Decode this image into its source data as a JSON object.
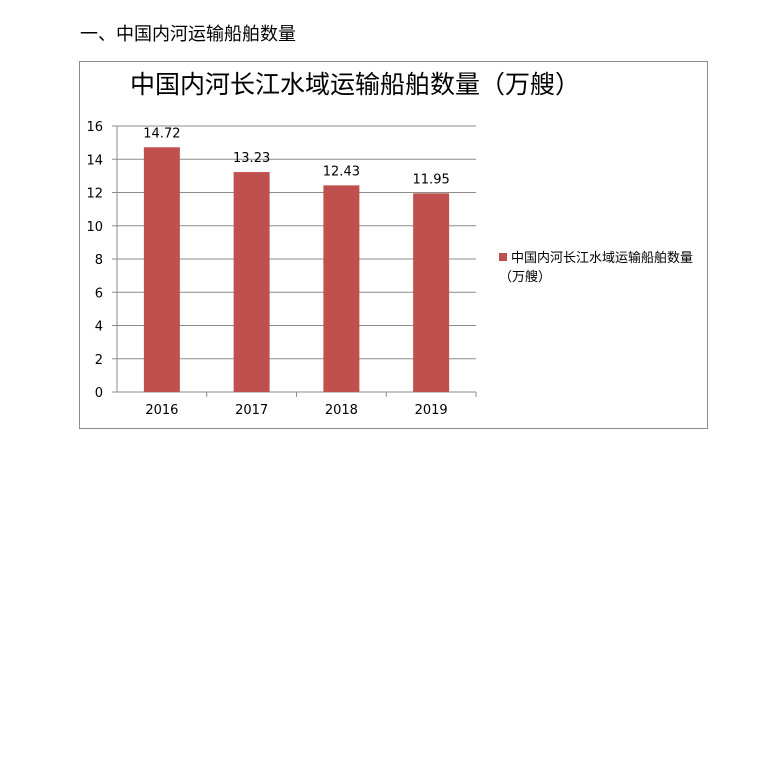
{
  "page": {
    "heading": "一、中国内河运输船舶数量"
  },
  "chart_data": {
    "type": "bar",
    "title": "中国内河长江水域运输船舶数量（万艘）",
    "categories": [
      "2016",
      "2017",
      "2018",
      "2019"
    ],
    "series": [
      {
        "name": "中国内河长江水域运输船舶数量（万艘）",
        "values": [
          14.72,
          13.23,
          12.43,
          11.95
        ],
        "color": "#c0504d"
      }
    ],
    "data_labels": [
      "14.72",
      "13.23",
      "12.43",
      "11.95"
    ],
    "ylim": [
      0,
      16
    ],
    "yticks": [
      "0",
      "2",
      "4",
      "6",
      "8",
      "10",
      "12",
      "14",
      "16"
    ],
    "grid": true,
    "legend_position": "right",
    "xlabel": "",
    "ylabel": ""
  }
}
